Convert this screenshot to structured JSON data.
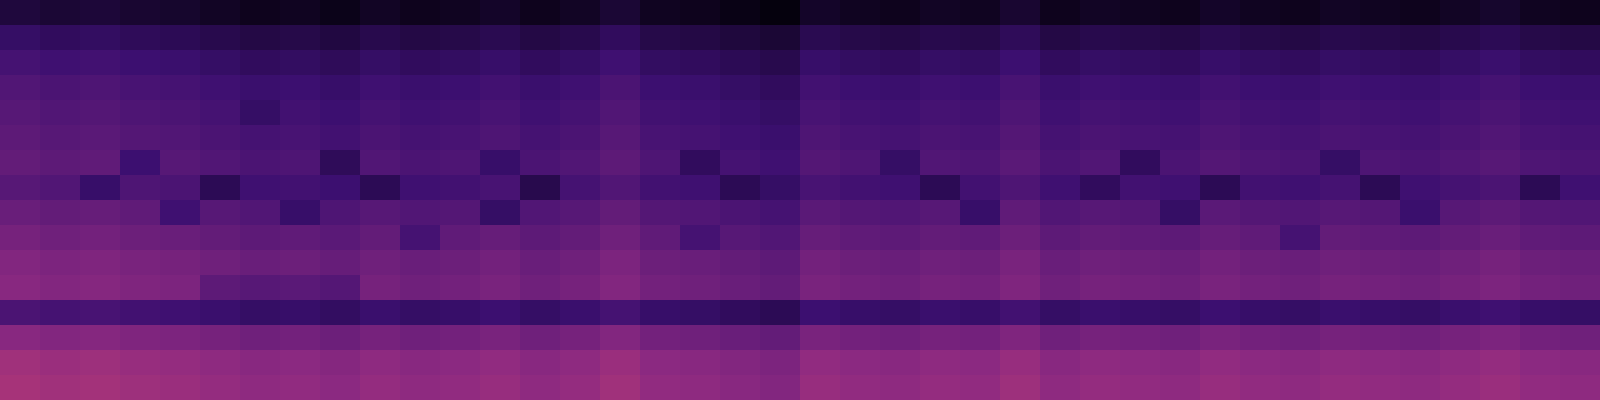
{
  "chart_data": {
    "type": "heatmap",
    "tick_labels": false,
    "cells": [
      [
        20,
        18,
        19,
        17,
        16,
        14,
        12,
        13,
        11,
        14,
        12,
        13,
        15,
        12,
        14,
        18,
        13,
        12,
        10,
        8,
        15,
        13,
        12,
        14,
        13,
        17,
        12,
        14,
        13,
        12,
        15,
        13,
        12,
        14,
        13,
        12,
        14,
        16,
        13,
        12
      ],
      [
        30,
        28,
        29,
        27,
        26,
        24,
        22,
        23,
        21,
        24,
        22,
        23,
        25,
        22,
        24,
        28,
        23,
        22,
        20,
        18,
        25,
        23,
        22,
        24,
        23,
        27,
        22,
        24,
        23,
        22,
        25,
        23,
        22,
        24,
        23,
        22,
        24,
        26,
        23,
        22
      ],
      [
        36,
        34,
        35,
        33,
        32,
        30,
        28,
        29,
        27,
        30,
        28,
        29,
        31,
        28,
        30,
        34,
        29,
        28,
        26,
        24,
        31,
        29,
        28,
        30,
        29,
        33,
        28,
        30,
        29,
        28,
        31,
        29,
        28,
        30,
        29,
        28,
        30,
        32,
        29,
        28
      ],
      [
        40,
        38,
        39,
        37,
        36,
        34,
        32,
        33,
        31,
        34,
        32,
        33,
        35,
        32,
        34,
        38,
        33,
        32,
        30,
        28,
        35,
        33,
        32,
        34,
        33,
        37,
        32,
        34,
        33,
        32,
        35,
        33,
        32,
        34,
        33,
        32,
        34,
        36,
        33,
        32
      ],
      [
        42,
        40,
        41,
        39,
        38,
        36,
        30,
        35,
        33,
        36,
        34,
        35,
        37,
        34,
        36,
        40,
        35,
        34,
        32,
        30,
        37,
        35,
        34,
        36,
        35,
        39,
        34,
        36,
        35,
        34,
        37,
        35,
        34,
        36,
        35,
        34,
        36,
        38,
        35,
        34
      ],
      [
        44,
        42,
        43,
        41,
        40,
        38,
        36,
        37,
        35,
        38,
        36,
        37,
        39,
        36,
        38,
        42,
        37,
        36,
        34,
        32,
        39,
        37,
        36,
        38,
        37,
        41,
        36,
        38,
        37,
        36,
        39,
        37,
        36,
        38,
        37,
        36,
        38,
        40,
        37,
        36
      ],
      [
        46,
        44,
        45,
        33,
        42,
        40,
        38,
        39,
        27,
        40,
        38,
        39,
        31,
        38,
        40,
        44,
        39,
        28,
        36,
        34,
        41,
        39,
        30,
        40,
        39,
        43,
        38,
        40,
        28,
        38,
        41,
        39,
        38,
        30,
        39,
        38,
        40,
        42,
        39,
        38
      ],
      [
        42,
        40,
        31,
        39,
        38,
        26,
        34,
        35,
        33,
        26,
        34,
        35,
        37,
        24,
        36,
        40,
        35,
        34,
        26,
        30,
        37,
        35,
        34,
        26,
        35,
        39,
        34,
        28,
        35,
        34,
        26,
        35,
        34,
        36,
        26,
        34,
        36,
        38,
        26,
        34
      ],
      [
        48,
        46,
        47,
        45,
        34,
        42,
        40,
        31,
        39,
        42,
        40,
        41,
        30,
        40,
        42,
        46,
        41,
        40,
        38,
        36,
        43,
        41,
        40,
        42,
        31,
        45,
        40,
        42,
        41,
        30,
        43,
        41,
        40,
        42,
        41,
        32,
        42,
        44,
        41,
        40
      ],
      [
        52,
        50,
        51,
        49,
        48,
        46,
        44,
        45,
        43,
        46,
        36,
        45,
        47,
        44,
        46,
        50,
        45,
        36,
        42,
        40,
        47,
        45,
        44,
        46,
        45,
        49,
        44,
        46,
        45,
        44,
        47,
        45,
        36,
        46,
        45,
        44,
        46,
        48,
        45,
        44
      ],
      [
        56,
        54,
        55,
        53,
        52,
        50,
        48,
        49,
        47,
        50,
        48,
        49,
        51,
        48,
        50,
        54,
        49,
        48,
        46,
        44,
        51,
        49,
        48,
        50,
        49,
        53,
        48,
        50,
        49,
        48,
        51,
        49,
        48,
        50,
        49,
        48,
        50,
        52,
        49,
        48
      ],
      [
        58,
        56,
        57,
        55,
        54,
        44,
        42,
        43,
        41,
        52,
        50,
        51,
        53,
        50,
        52,
        56,
        51,
        50,
        48,
        46,
        53,
        51,
        50,
        52,
        51,
        55,
        50,
        52,
        51,
        50,
        53,
        51,
        50,
        52,
        51,
        50,
        52,
        54,
        51,
        50
      ],
      [
        38,
        36,
        37,
        35,
        34,
        32,
        30,
        31,
        29,
        32,
        30,
        31,
        33,
        30,
        32,
        36,
        31,
        30,
        28,
        26,
        33,
        31,
        30,
        32,
        31,
        35,
        30,
        32,
        31,
        30,
        33,
        31,
        30,
        32,
        31,
        30,
        32,
        34,
        31,
        30
      ],
      [
        58,
        56,
        57,
        55,
        54,
        52,
        50,
        51,
        49,
        52,
        50,
        51,
        53,
        50,
        52,
        56,
        51,
        50,
        48,
        46,
        53,
        51,
        50,
        52,
        51,
        55,
        50,
        52,
        51,
        50,
        53,
        51,
        50,
        52,
        51,
        50,
        52,
        54,
        51,
        50
      ],
      [
        66,
        64,
        65,
        63,
        62,
        60,
        58,
        59,
        57,
        60,
        58,
        59,
        61,
        58,
        60,
        64,
        59,
        58,
        56,
        54,
        61,
        59,
        58,
        60,
        59,
        63,
        58,
        60,
        59,
        58,
        61,
        59,
        58,
        60,
        59,
        58,
        60,
        62,
        59,
        58
      ],
      [
        68,
        66,
        67,
        65,
        64,
        62,
        60,
        61,
        59,
        62,
        60,
        61,
        63,
        60,
        62,
        66,
        61,
        60,
        58,
        56,
        63,
        61,
        60,
        62,
        61,
        65,
        60,
        62,
        61,
        60,
        63,
        61,
        60,
        62,
        61,
        60,
        62,
        64,
        61,
        60
      ]
    ]
  }
}
